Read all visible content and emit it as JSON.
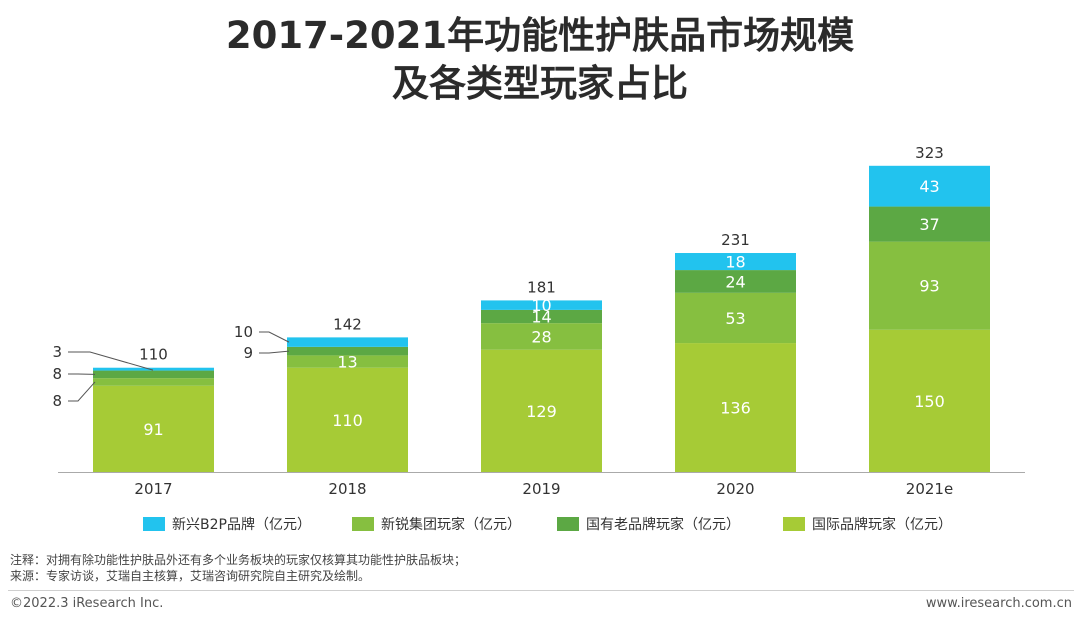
{
  "title_line1": "2017-2021年功能性护肤品市场规模",
  "title_line2": "及各类型玩家占比",
  "chart_data": {
    "type": "bar",
    "stacked": true,
    "categories": [
      "2017",
      "2018",
      "2019",
      "2020",
      "2021e"
    ],
    "series": [
      {
        "name": "国际品牌玩家（亿元）",
        "color": "#a6cb36",
        "values": [
          91,
          110,
          129,
          136,
          150
        ]
      },
      {
        "name": "新锐集团玩家（亿元）",
        "color": "#86bf40",
        "values": [
          8,
          13,
          28,
          53,
          93
        ]
      },
      {
        "name": "国有老品牌玩家（亿元）",
        "color": "#5ca844",
        "values": [
          8,
          9,
          14,
          24,
          37
        ]
      },
      {
        "name": "新兴B2P品牌（亿元）",
        "color": "#22c3ee",
        "values": [
          3,
          10,
          10,
          18,
          43
        ]
      }
    ],
    "totals": [
      "110",
      "142",
      "181",
      "231",
      "323"
    ],
    "legend_order": [
      3,
      1,
      2,
      0
    ],
    "legend_position": "bottom",
    "grid": false,
    "ylim": [
      0,
      330
    ]
  },
  "notes": {
    "line1": "注释：对拥有除功能性护肤品外还有多个业务板块的玩家仅核算其功能性护肤品板块；",
    "line2": "来源：专家访谈，艾瑞自主核算，艾瑞咨询研究院自主研究及绘制。"
  },
  "footer": {
    "left": "©2022.3 iResearch Inc.",
    "right": "www.iresearch.com.cn"
  }
}
